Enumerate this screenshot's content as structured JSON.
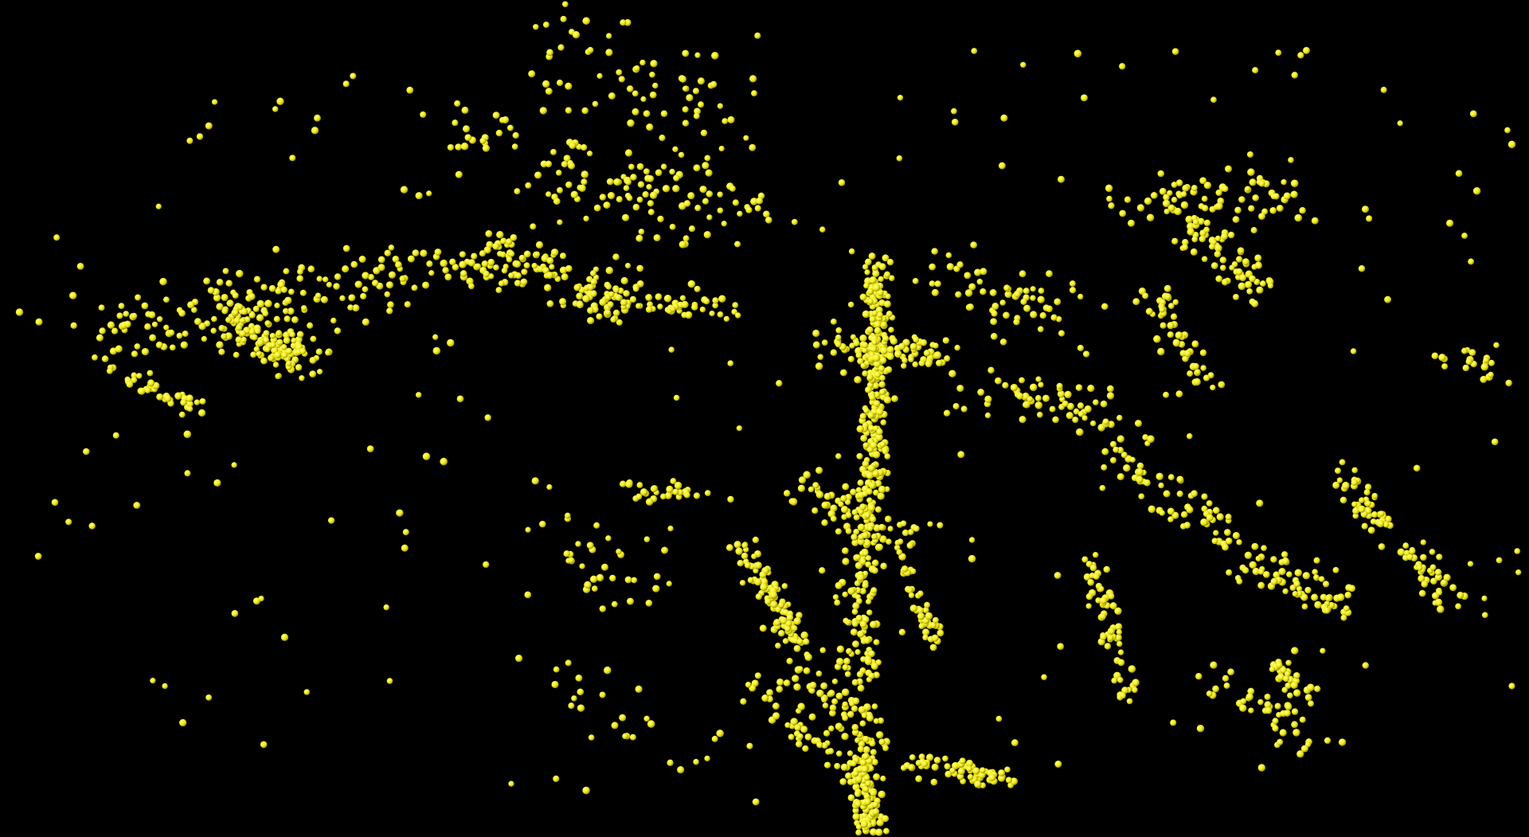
{
  "scene": {
    "background_color": "#000000",
    "point_color": "#f2ec1a",
    "point_highlight_color": "#ffff8a",
    "point_shade_color": "#8f8a00",
    "point_shape": "sphere",
    "point_count_approx": 2000
  }
}
